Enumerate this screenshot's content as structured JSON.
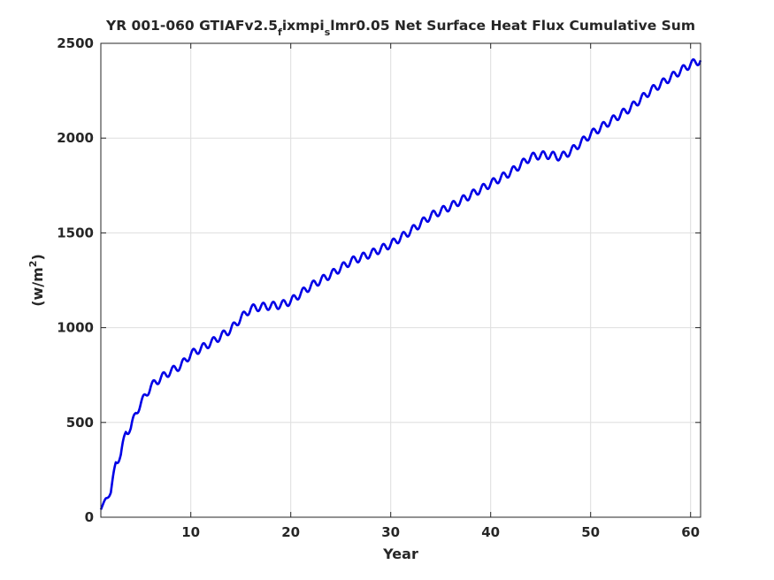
{
  "chart_data": {
    "type": "line",
    "title": {
      "part1": "YR 001-060 GTIAFv2.5",
      "sub1": "f",
      "part2": "ixmpi",
      "sub2": "s",
      "part3": "lmr0.05 Net Surface Heat Flux  Cumulative Sum"
    },
    "xlabel": "Year",
    "ylabel": {
      "base": "(w/m",
      "sup": "2",
      "close": ")"
    },
    "xlim": [
      1,
      61
    ],
    "ylim": [
      0,
      2500
    ],
    "xticks": [
      10,
      20,
      30,
      40,
      50,
      60
    ],
    "yticks": [
      0,
      500,
      1000,
      1500,
      2000,
      2500
    ],
    "grid": true,
    "line_color": "#0000e6",
    "series": [
      {
        "seasonal_amplitude": 20,
        "x": [
          1,
          1.5,
          2,
          2.5,
          3,
          3.5,
          4,
          4.5,
          5,
          6,
          7,
          8,
          9,
          10,
          12,
          14,
          15,
          16,
          17,
          18,
          19,
          20,
          22,
          24,
          26,
          28,
          30,
          32,
          34,
          36,
          38,
          40,
          42,
          44,
          45,
          46,
          47,
          48,
          50,
          52,
          54,
          56,
          58,
          60,
          61
        ],
        "y": [
          40,
          100,
          130,
          290,
          330,
          450,
          470,
          550,
          600,
          690,
          735,
          770,
          800,
          860,
          920,
          990,
          1050,
          1100,
          1110,
          1115,
          1120,
          1140,
          1220,
          1280,
          1350,
          1390,
          1440,
          1510,
          1590,
          1640,
          1700,
          1760,
          1820,
          1900,
          1910,
          1910,
          1900,
          1930,
          2020,
          2090,
          2160,
          2250,
          2320,
          2390,
          2410
        ]
      }
    ]
  }
}
